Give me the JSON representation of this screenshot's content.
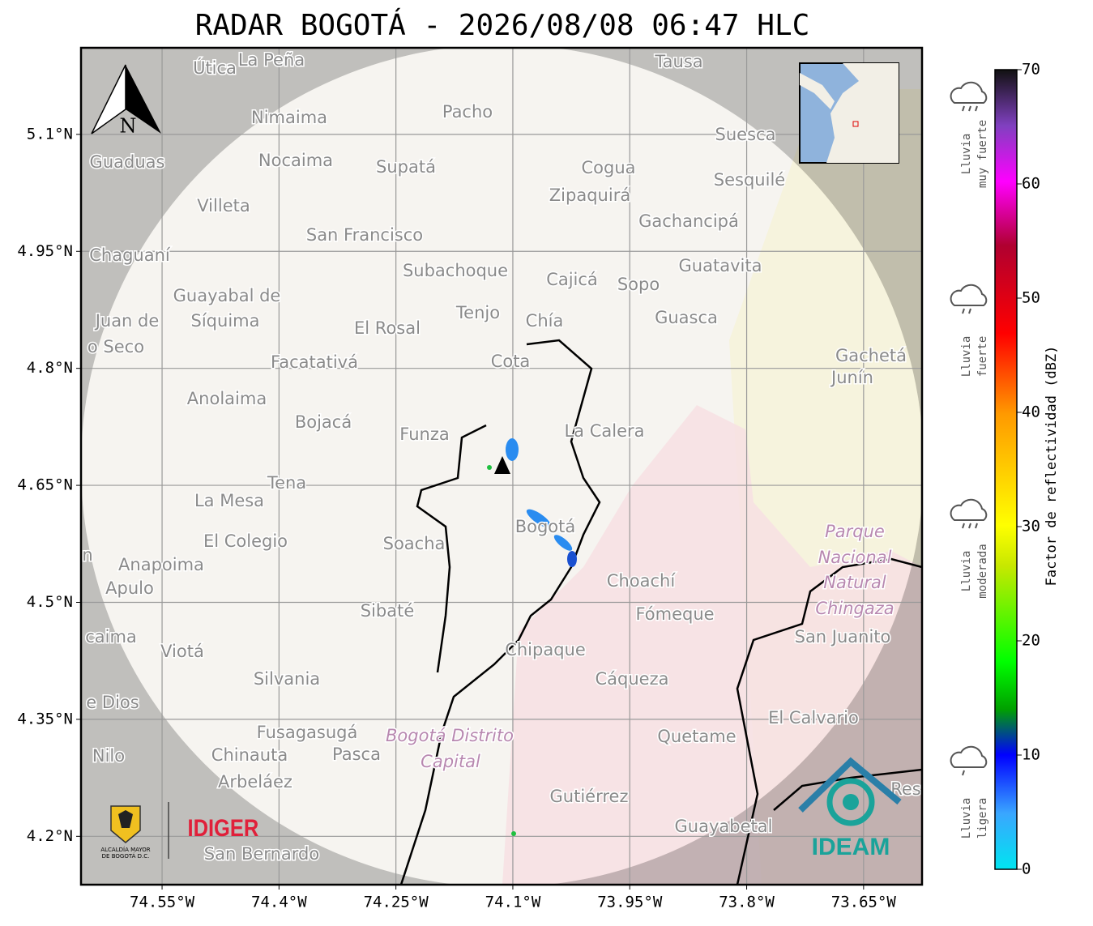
{
  "title": "RADAR BOGOTÁ - 2026/08/08 06:47 HLC",
  "map": {
    "lonlim": [
      -74.654,
      -73.575
    ],
    "latlim": [
      4.138,
      5.211
    ],
    "lon_ticks": [
      {
        "value": -74.55,
        "label": "74.55°W"
      },
      {
        "value": -74.4,
        "label": "74.4°W"
      },
      {
        "value": -74.25,
        "label": "74.25°W"
      },
      {
        "value": -74.1,
        "label": "74.1°W"
      },
      {
        "value": -73.95,
        "label": "73.95°W"
      },
      {
        "value": -73.8,
        "label": "73.8°W"
      },
      {
        "value": -73.65,
        "label": "73.65°W"
      }
    ],
    "lat_ticks": [
      {
        "value": 5.1,
        "label": "5.1°N"
      },
      {
        "value": 4.95,
        "label": "4.95°N"
      },
      {
        "value": 4.8,
        "label": "4.8°N"
      },
      {
        "value": 4.65,
        "label": "4.65°N"
      },
      {
        "value": 4.5,
        "label": "4.5°N"
      },
      {
        "value": 4.35,
        "label": "4.35°N"
      },
      {
        "value": 4.2,
        "label": "4.2°N"
      }
    ],
    "north_label": "N",
    "places": [
      "Útica",
      "La Peña",
      "Tausa",
      "Pacho",
      "Nimaima",
      "Guaduas",
      "Nocaima",
      "Supatá",
      "Cogua",
      "Suesca",
      "Sesquilé",
      "Villeta",
      "Zipaquirá",
      "Gachancipá",
      "San Francisco",
      "Chaguaní",
      "Subachoque",
      "Cajicá",
      "Sopo",
      "Guatavita",
      "Guayabal de",
      "Síquima",
      "Juan de",
      "o Seco",
      "Tenjo",
      "Chía",
      "El Rosal",
      "Guasca",
      "Facatativá",
      "Cota",
      "Gachetá",
      "Junín",
      "Anolaima",
      "Bojacá",
      "Funza",
      "La Calera",
      "Tena",
      "La Mesa",
      "El Colegio",
      "Soacha",
      "Bogotá",
      "Parque",
      "Nacional",
      "Natural",
      "Chingaza",
      "Anapoima",
      "Apulo",
      "n",
      "Choachí",
      "Sibaté",
      "Fómeque",
      "San Juanito",
      "caima",
      "Viotá",
      "Chipaque",
      "Silvania",
      "Cáqueza",
      "e Dios",
      "El Calvario",
      "Fusagasugá",
      "Bogotá Distrito",
      "Capital",
      "Quetame",
      "Nilo",
      "Chinauta",
      "Pasca",
      "Arbeláez",
      "Gutiérrez",
      "Guayabetal",
      "Res",
      "San Bernardo"
    ]
  },
  "logos": {
    "alcaldia": [
      "ALCALDÍA MAYOR",
      "DE BOGOTÁ D.C."
    ],
    "idiger": "IDIGER",
    "ideam": "IDEAM"
  },
  "colorbar": {
    "label": "Factor de reflectividad (dBZ)",
    "lim": [
      0,
      70
    ],
    "ticks": [
      0,
      10,
      20,
      30,
      40,
      50,
      60,
      70
    ]
  },
  "rain_levels": [
    [
      "Lluvia",
      "muy fuerte"
    ],
    [
      "Lluvia",
      "fuerte"
    ],
    [
      "Lluvia",
      "moderada"
    ],
    [
      "Lluvia",
      "ligera"
    ]
  ]
}
